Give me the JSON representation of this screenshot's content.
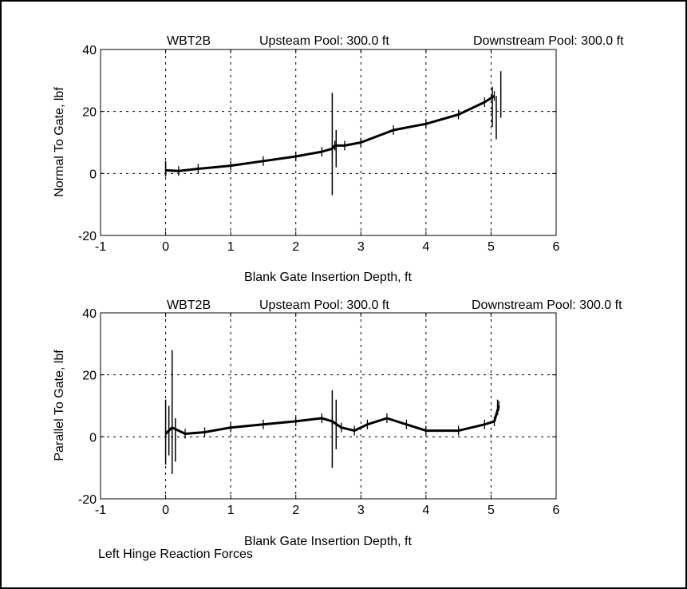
{
  "figure": {
    "caption": "Left Hinge Reaction Forces"
  },
  "chart_data": [
    {
      "type": "line",
      "header": {
        "test_id": "WBT2B",
        "upstream": "Upsteam Pool: 300.0 ft",
        "downstream": "Downstream Pool: 300.0 ft"
      },
      "xlabel": "Blank Gate Insertion Depth, ft",
      "ylabel": "Normal To Gate, lbf",
      "xlim": [
        -1,
        6
      ],
      "ylim": [
        -20,
        40
      ],
      "xticks": [
        "-1",
        "0",
        "1",
        "2",
        "3",
        "4",
        "5",
        "6"
      ],
      "yticks": [
        "-20",
        "0",
        "20",
        "40"
      ],
      "grid": true,
      "series": [
        {
          "x": [
            0.0,
            0.2,
            0.5,
            1.0,
            1.5,
            2.0,
            2.4,
            2.56,
            2.6,
            2.75,
            3.0,
            3.5,
            4.0,
            4.5,
            4.9,
            5.05
          ],
          "y": [
            1,
            0.8,
            1.5,
            2.5,
            4,
            5.5,
            7,
            8,
            9,
            9,
            10,
            14,
            16,
            19,
            23,
            25
          ]
        }
      ],
      "spikes": [
        {
          "x": 0.0,
          "low": -1,
          "high": 4
        },
        {
          "x": 2.56,
          "low": -7,
          "high": 26
        },
        {
          "x": 2.62,
          "low": 2,
          "high": 14
        },
        {
          "x": 5.02,
          "low": 15,
          "high": 28
        },
        {
          "x": 5.08,
          "low": 11,
          "high": 25
        },
        {
          "x": 5.15,
          "low": 18,
          "high": 33
        }
      ]
    },
    {
      "type": "line",
      "header": {
        "test_id": "WBT2B",
        "upstream": "Upsteam Pool: 300.0 ft",
        "downstream": "Downstream Pool: 300.0 ft"
      },
      "xlabel": "Blank Gate Insertion Depth, ft",
      "ylabel": "Parallel To Gate, lbf",
      "xlim": [
        -1,
        6
      ],
      "ylim": [
        -20,
        40
      ],
      "xticks": [
        "-1",
        "0",
        "1",
        "2",
        "3",
        "4",
        "5",
        "6"
      ],
      "yticks": [
        "-20",
        "0",
        "20",
        "40"
      ],
      "grid": true,
      "series": [
        {
          "x": [
            0.0,
            0.1,
            0.3,
            0.6,
            1.0,
            1.5,
            2.0,
            2.4,
            2.56,
            2.7,
            2.9,
            3.1,
            3.4,
            3.7,
            4.0,
            4.5,
            4.9,
            5.05,
            5.12
          ],
          "y": [
            1,
            3,
            1,
            1.5,
            3,
            4,
            5,
            6,
            5,
            3,
            2,
            4,
            6,
            4,
            2,
            2,
            4,
            5,
            10
          ]
        }
      ],
      "spikes": [
        {
          "x": 0.0,
          "low": -9,
          "high": 12
        },
        {
          "x": 0.05,
          "low": -6,
          "high": 10
        },
        {
          "x": 0.1,
          "low": -12,
          "high": 28
        },
        {
          "x": 0.15,
          "low": -8,
          "high": 6
        },
        {
          "x": 2.56,
          "low": -10,
          "high": 15
        },
        {
          "x": 2.62,
          "low": -4,
          "high": 12
        },
        {
          "x": 5.1,
          "low": 7,
          "high": 12
        }
      ]
    }
  ]
}
